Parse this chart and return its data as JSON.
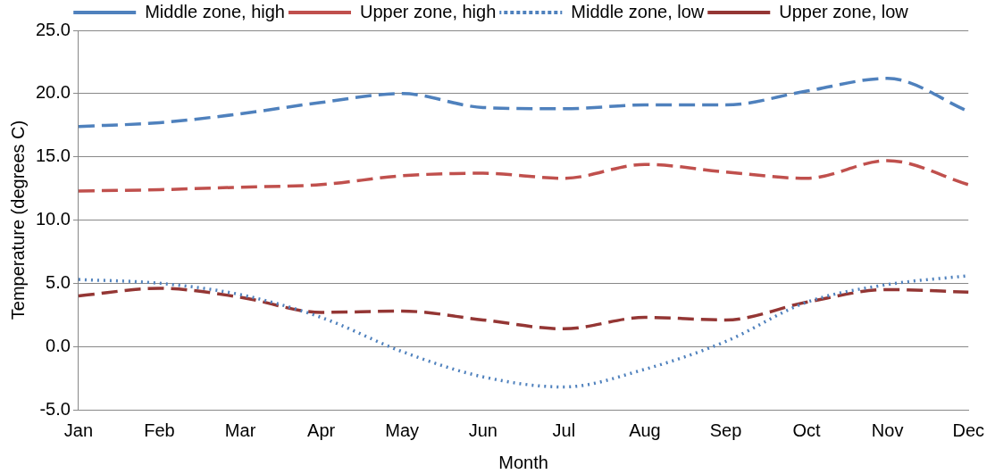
{
  "chart_data": {
    "type": "line",
    "xlabel": "Month",
    "ylabel": "Temperature (degrees C)",
    "categories": [
      "Jan",
      "Feb",
      "Mar",
      "Apr",
      "May",
      "Jun",
      "Jul",
      "Aug",
      "Sep",
      "Oct",
      "Nov",
      "Dec"
    ],
    "series": [
      {
        "name": "Middle zone, high",
        "color": "#4f81bd",
        "line_style": "dashed",
        "values": [
          17.4,
          17.7,
          18.4,
          19.3,
          20.0,
          18.9,
          18.8,
          19.1,
          19.1,
          20.2,
          21.2,
          18.6
        ]
      },
      {
        "name": "Upper zone, high",
        "color": "#c0504d",
        "line_style": "dashed",
        "values": [
          12.3,
          12.4,
          12.6,
          12.8,
          13.5,
          13.7,
          13.3,
          14.4,
          13.8,
          13.3,
          14.7,
          12.8
        ]
      },
      {
        "name": "Middle zone, low",
        "color": "#4f81bd",
        "line_style": "dotted",
        "values": [
          5.3,
          5.0,
          4.1,
          2.3,
          -0.4,
          -2.4,
          -3.2,
          -1.8,
          0.4,
          3.5,
          4.9,
          5.6
        ]
      },
      {
        "name": "Upper zone, low",
        "color": "#943634",
        "line_style": "dashed",
        "values": [
          4.0,
          4.6,
          3.9,
          2.7,
          2.8,
          2.1,
          1.4,
          2.3,
          2.1,
          3.5,
          4.5,
          4.3
        ]
      }
    ],
    "ylim": [
      -5,
      25
    ],
    "yticks": [
      {
        "value": -5,
        "label": "-5.0"
      },
      {
        "value": 0,
        "label": "0.0"
      },
      {
        "value": 5,
        "label": "5.0"
      },
      {
        "value": 10,
        "label": "10.0"
      },
      {
        "value": 15,
        "label": "15.0"
      },
      {
        "value": 20,
        "label": "20.0"
      },
      {
        "value": 25,
        "label": "25.0"
      }
    ],
    "grid": "y",
    "legend": "top",
    "marker": "none"
  }
}
